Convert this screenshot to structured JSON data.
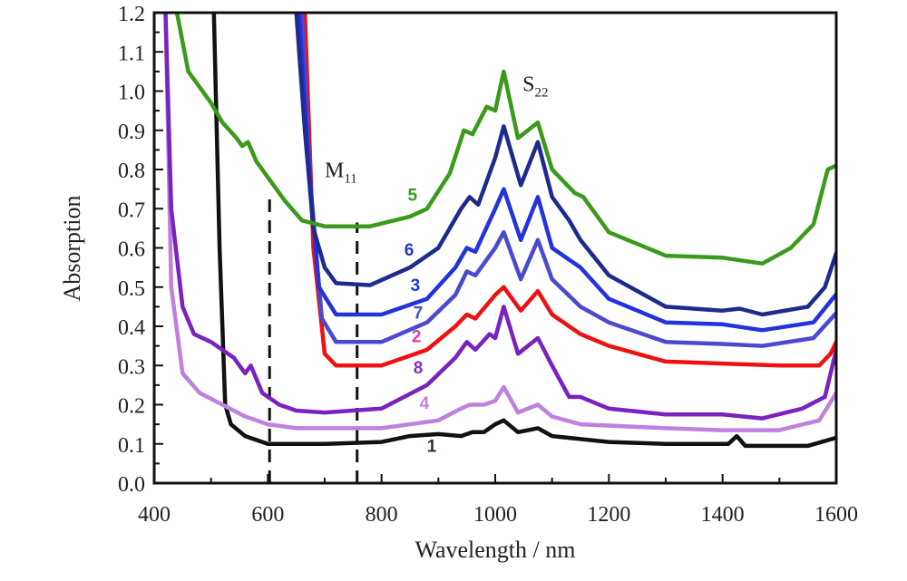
{
  "chart_data": {
    "type": "line",
    "title": "",
    "xlabel": "Wavelength / nm",
    "ylabel": "Absorption",
    "xlim": [
      400,
      1600
    ],
    "ylim": [
      0.0,
      1.2
    ],
    "xticks": [
      400,
      600,
      800,
      1000,
      1200,
      1400,
      1600
    ],
    "yticks": [
      "0.0",
      "0.1",
      "0.2",
      "0.3",
      "0.4",
      "0.5",
      "0.6",
      "0.7",
      "0.8",
      "0.9",
      "1.0",
      "1.1",
      "1.2"
    ],
    "grid": false,
    "legend": "inline labels",
    "series": [
      {
        "name": "5",
        "color": "#3a9a1a",
        "label_color": "#3a9a1a",
        "label_at": [
          846,
          0.72
        ],
        "points": [
          [
            440,
            1.2
          ],
          [
            460,
            1.05
          ],
          [
            500,
            0.97
          ],
          [
            520,
            0.92
          ],
          [
            545,
            0.88
          ],
          [
            555,
            0.86
          ],
          [
            565,
            0.87
          ],
          [
            580,
            0.82
          ],
          [
            600,
            0.78
          ],
          [
            630,
            0.72
          ],
          [
            660,
            0.67
          ],
          [
            700,
            0.655
          ],
          [
            780,
            0.655
          ],
          [
            850,
            0.68
          ],
          [
            880,
            0.7
          ],
          [
            920,
            0.79
          ],
          [
            945,
            0.9
          ],
          [
            960,
            0.89
          ],
          [
            985,
            0.96
          ],
          [
            1000,
            0.95
          ],
          [
            1015,
            1.05
          ],
          [
            1040,
            0.88
          ],
          [
            1075,
            0.92
          ],
          [
            1100,
            0.8
          ],
          [
            1140,
            0.74
          ],
          [
            1155,
            0.73
          ],
          [
            1200,
            0.64
          ],
          [
            1300,
            0.58
          ],
          [
            1400,
            0.575
          ],
          [
            1470,
            0.56
          ],
          [
            1520,
            0.6
          ],
          [
            1560,
            0.66
          ],
          [
            1585,
            0.8
          ],
          [
            1600,
            0.81
          ],
          [
            1610,
            0.78
          ]
        ]
      },
      {
        "name": "6",
        "color": "#1f2a8f",
        "label_color": "#2436c8",
        "label_at": [
          840,
          0.58
        ],
        "points": [
          [
            650,
            1.2
          ],
          [
            665,
            0.9
          ],
          [
            680,
            0.65
          ],
          [
            700,
            0.55
          ],
          [
            720,
            0.51
          ],
          [
            780,
            0.505
          ],
          [
            850,
            0.55
          ],
          [
            900,
            0.6
          ],
          [
            940,
            0.7
          ],
          [
            955,
            0.73
          ],
          [
            970,
            0.71
          ],
          [
            1000,
            0.83
          ],
          [
            1015,
            0.91
          ],
          [
            1045,
            0.76
          ],
          [
            1075,
            0.87
          ],
          [
            1100,
            0.73
          ],
          [
            1130,
            0.67
          ],
          [
            1150,
            0.62
          ],
          [
            1200,
            0.53
          ],
          [
            1300,
            0.45
          ],
          [
            1400,
            0.44
          ],
          [
            1430,
            0.445
          ],
          [
            1470,
            0.43
          ],
          [
            1550,
            0.45
          ],
          [
            1580,
            0.5
          ],
          [
            1610,
            0.63
          ]
        ]
      },
      {
        "name": "3",
        "color": "#2233dd",
        "label_color": "#2233dd",
        "label_at": [
          851,
          0.49
        ],
        "points": [
          [
            655,
            1.2
          ],
          [
            670,
            0.85
          ],
          [
            690,
            0.5
          ],
          [
            720,
            0.43
          ],
          [
            800,
            0.43
          ],
          [
            880,
            0.47
          ],
          [
            930,
            0.55
          ],
          [
            950,
            0.6
          ],
          [
            965,
            0.59
          ],
          [
            1000,
            0.7
          ],
          [
            1015,
            0.75
          ],
          [
            1045,
            0.62
          ],
          [
            1075,
            0.73
          ],
          [
            1100,
            0.6
          ],
          [
            1150,
            0.55
          ],
          [
            1200,
            0.47
          ],
          [
            1300,
            0.41
          ],
          [
            1400,
            0.405
          ],
          [
            1470,
            0.39
          ],
          [
            1560,
            0.41
          ],
          [
            1610,
            0.5
          ]
        ]
      },
      {
        "name": "7",
        "color": "#4a4ad0",
        "label_color": "#4a4ad0",
        "label_at": [
          856,
          0.42
        ],
        "points": [
          [
            660,
            1.2
          ],
          [
            675,
            0.75
          ],
          [
            695,
            0.42
          ],
          [
            720,
            0.36
          ],
          [
            800,
            0.36
          ],
          [
            880,
            0.41
          ],
          [
            930,
            0.48
          ],
          [
            950,
            0.54
          ],
          [
            965,
            0.53
          ],
          [
            1000,
            0.6
          ],
          [
            1015,
            0.64
          ],
          [
            1045,
            0.52
          ],
          [
            1075,
            0.62
          ],
          [
            1100,
            0.52
          ],
          [
            1150,
            0.45
          ],
          [
            1200,
            0.41
          ],
          [
            1300,
            0.36
          ],
          [
            1400,
            0.355
          ],
          [
            1470,
            0.35
          ],
          [
            1560,
            0.37
          ],
          [
            1610,
            0.45
          ]
        ]
      },
      {
        "name": "2",
        "color": "#ee1111",
        "label_color": "#e83aa8",
        "label_at": [
          853,
          0.36
        ],
        "points": [
          [
            665,
            1.2
          ],
          [
            680,
            0.6
          ],
          [
            700,
            0.33
          ],
          [
            720,
            0.3
          ],
          [
            800,
            0.3
          ],
          [
            880,
            0.34
          ],
          [
            930,
            0.4
          ],
          [
            950,
            0.43
          ],
          [
            965,
            0.42
          ],
          [
            1000,
            0.48
          ],
          [
            1015,
            0.5
          ],
          [
            1045,
            0.44
          ],
          [
            1075,
            0.49
          ],
          [
            1100,
            0.43
          ],
          [
            1150,
            0.38
          ],
          [
            1200,
            0.35
          ],
          [
            1300,
            0.31
          ],
          [
            1400,
            0.305
          ],
          [
            1500,
            0.3
          ],
          [
            1570,
            0.3
          ],
          [
            1590,
            0.33
          ],
          [
            1610,
            0.39
          ]
        ]
      },
      {
        "name": "8",
        "color": "#7a22c0",
        "label_color": "#8a30c0",
        "label_at": [
          856,
          0.28
        ],
        "points": [
          [
            420,
            1.2
          ],
          [
            430,
            0.7
          ],
          [
            450,
            0.45
          ],
          [
            470,
            0.38
          ],
          [
            500,
            0.36
          ],
          [
            540,
            0.32
          ],
          [
            560,
            0.28
          ],
          [
            570,
            0.3
          ],
          [
            590,
            0.23
          ],
          [
            620,
            0.2
          ],
          [
            650,
            0.185
          ],
          [
            700,
            0.18
          ],
          [
            800,
            0.19
          ],
          [
            880,
            0.25
          ],
          [
            930,
            0.32
          ],
          [
            950,
            0.36
          ],
          [
            965,
            0.34
          ],
          [
            990,
            0.38
          ],
          [
            1000,
            0.37
          ],
          [
            1015,
            0.45
          ],
          [
            1040,
            0.33
          ],
          [
            1075,
            0.37
          ],
          [
            1100,
            0.3
          ],
          [
            1130,
            0.22
          ],
          [
            1150,
            0.22
          ],
          [
            1200,
            0.19
          ],
          [
            1300,
            0.175
          ],
          [
            1400,
            0.175
          ],
          [
            1470,
            0.165
          ],
          [
            1540,
            0.19
          ],
          [
            1580,
            0.22
          ],
          [
            1600,
            0.34
          ],
          [
            1610,
            0.33
          ]
        ]
      },
      {
        "name": "4",
        "color": "#c080e0",
        "label_color": "#c080e0",
        "label_at": [
          867,
          0.19
        ],
        "points": [
          [
            420,
            1.2
          ],
          [
            430,
            0.5
          ],
          [
            450,
            0.28
          ],
          [
            480,
            0.23
          ],
          [
            520,
            0.2
          ],
          [
            560,
            0.17
          ],
          [
            600,
            0.15
          ],
          [
            650,
            0.14
          ],
          [
            800,
            0.14
          ],
          [
            900,
            0.16
          ],
          [
            940,
            0.19
          ],
          [
            955,
            0.2
          ],
          [
            980,
            0.2
          ],
          [
            1000,
            0.21
          ],
          [
            1015,
            0.245
          ],
          [
            1040,
            0.18
          ],
          [
            1075,
            0.2
          ],
          [
            1100,
            0.17
          ],
          [
            1150,
            0.15
          ],
          [
            1300,
            0.14
          ],
          [
            1400,
            0.135
          ],
          [
            1500,
            0.135
          ],
          [
            1570,
            0.16
          ],
          [
            1600,
            0.23
          ],
          [
            1610,
            0.23
          ]
        ]
      },
      {
        "name": "1",
        "color": "#111111",
        "label_color": "#333322",
        "label_at": [
          880,
          0.08
        ],
        "points": [
          [
            505,
            1.2
          ],
          [
            515,
            0.6
          ],
          [
            525,
            0.2
          ],
          [
            535,
            0.15
          ],
          [
            560,
            0.12
          ],
          [
            600,
            0.1
          ],
          [
            700,
            0.1
          ],
          [
            800,
            0.105
          ],
          [
            850,
            0.12
          ],
          [
            900,
            0.125
          ],
          [
            940,
            0.12
          ],
          [
            960,
            0.13
          ],
          [
            980,
            0.13
          ],
          [
            1000,
            0.15
          ],
          [
            1015,
            0.16
          ],
          [
            1040,
            0.13
          ],
          [
            1075,
            0.14
          ],
          [
            1100,
            0.12
          ],
          [
            1200,
            0.105
          ],
          [
            1300,
            0.1
          ],
          [
            1410,
            0.1
          ],
          [
            1425,
            0.12
          ],
          [
            1440,
            0.095
          ],
          [
            1550,
            0.095
          ],
          [
            1610,
            0.12
          ]
        ]
      }
    ],
    "annotations": [
      {
        "text": "M",
        "sub": "11",
        "at": [
          700,
          0.78
        ]
      },
      {
        "text": "S",
        "sub": "22",
        "at": [
          1048,
          1.0
        ]
      }
    ],
    "dashed_lines": [
      {
        "x": 603,
        "from": 0.0,
        "to": 0.735
      },
      {
        "x": 757,
        "from": 0.0,
        "to": 0.665
      }
    ]
  }
}
